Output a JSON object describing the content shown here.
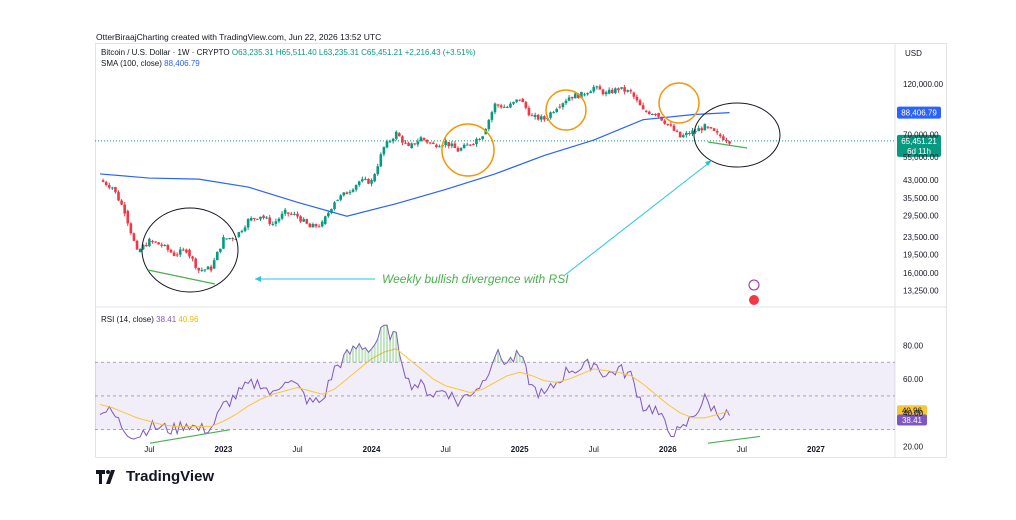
{
  "credit": "OtterBiraajCharting created with TradingView.com, Jun 22, 2026 13:52 UTC",
  "main_legend": {
    "symbol": "Bitcoin / U.S. Dollar · 1W · CRYPTO",
    "ohlc": "O63,235.31  H65,511.40  L63,235.31  C65,451.21  +2,216.43 (+3.51%)",
    "sma_label": "SMA (100, close)",
    "sma_value": "88,406.79"
  },
  "rsi_legend": {
    "label": "RSI (14, close)",
    "rsi_value": "38.41",
    "ma_value": "40.96"
  },
  "annotation": "Weekly bullish divergence with RSI",
  "currency": "USD",
  "badges": {
    "sma": "88,406.79",
    "price": "65,451.21",
    "countdown": "6d 11h",
    "rsi_ma": "40.96",
    "rsi": "38.41"
  },
  "logo_text": "TradingView",
  "colors": {
    "up": "#089981",
    "down": "#f23645",
    "sma": "#2962ff",
    "rsi": "#7e57c2",
    "rsi_ma": "#f7c63b",
    "circle_orange": "#f89500",
    "divergence": "#4caf50",
    "band": "#7e57c2"
  },
  "chart_data": [
    {
      "type": "candlestick",
      "title": "Bitcoin / U.S. Dollar · 1W · CRYPTO",
      "y_scale": "log",
      "ylim": [
        12000,
        150000
      ],
      "y_ticks": [
        120000,
        70000,
        55000,
        43000,
        35500,
        29500,
        23500,
        19500,
        16000,
        13250
      ],
      "x_ticks": [
        "Jul",
        "2023",
        "Jul",
        "2024",
        "Jul",
        "2025",
        "Jul",
        "2026",
        "Jul",
        "2027"
      ],
      "series": [
        {
          "name": "Bitcoin / U.S. Dollar",
          "points": [
            [
              "2022-03",
              43000
            ],
            [
              "2022-04",
              40000
            ],
            [
              "2022-05",
              31000
            ],
            [
              "2022-06",
              20000
            ],
            [
              "2022-07",
              22500
            ],
            [
              "2022-08",
              21500
            ],
            [
              "2022-09",
              19500
            ],
            [
              "2022-10",
              20500
            ],
            [
              "2022-11",
              16500
            ],
            [
              "2022-12",
              16800
            ],
            [
              "2023-01",
              23000
            ],
            [
              "2023-02",
              23500
            ],
            [
              "2023-03",
              28000
            ],
            [
              "2023-04",
              29500
            ],
            [
              "2023-05",
              27000
            ],
            [
              "2023-06",
              30500
            ],
            [
              "2023-07",
              29300
            ],
            [
              "2023-08",
              26000
            ],
            [
              "2023-09",
              27000
            ],
            [
              "2023-10",
              34500
            ],
            [
              "2023-11",
              37700
            ],
            [
              "2023-12",
              42500
            ],
            [
              "2024-01",
              42500
            ],
            [
              "2024-02",
              61000
            ],
            [
              "2024-03",
              71000
            ],
            [
              "2024-04",
              60600
            ],
            [
              "2024-05",
              67500
            ],
            [
              "2024-06",
              62700
            ],
            [
              "2024-07",
              64600
            ],
            [
              "2024-08",
              59000
            ],
            [
              "2024-09",
              63300
            ],
            [
              "2024-10",
              70200
            ],
            [
              "2024-11",
              96400
            ],
            [
              "2024-12",
              93400
            ],
            [
              "2025-01",
              102400
            ],
            [
              "2025-02",
              84400
            ],
            [
              "2025-03",
              82500
            ],
            [
              "2025-04",
              94200
            ],
            [
              "2025-05",
              104600
            ],
            [
              "2025-06",
              107100
            ],
            [
              "2025-07",
              115800
            ],
            [
              "2025-08",
              108200
            ],
            [
              "2025-09",
              114000
            ],
            [
              "2025-10",
              109500
            ],
            [
              "2025-11",
              90000
            ],
            [
              "2025-12",
              88000
            ],
            [
              "2026-01",
              78000
            ],
            [
              "2026-02",
              68000
            ],
            [
              "2026-03",
              72000
            ],
            [
              "2026-04",
              76000
            ],
            [
              "2026-05",
              70000
            ],
            [
              "2026-06",
              65451.21
            ]
          ]
        },
        {
          "name": "SMA (100, close)",
          "points": [
            [
              "2022-03",
              46000
            ],
            [
              "2022-07",
              44000
            ],
            [
              "2022-11",
              43500
            ],
            [
              "2023-03",
              40000
            ],
            [
              "2023-07",
              34000
            ],
            [
              "2023-11",
              29300
            ],
            [
              "2024-03",
              33500
            ],
            [
              "2024-07",
              39000
            ],
            [
              "2024-11",
              46000
            ],
            [
              "2025-03",
              56000
            ],
            [
              "2025-07",
              66000
            ],
            [
              "2025-11",
              82000
            ],
            [
              "2026-03",
              86500
            ],
            [
              "2026-06",
              88406.79
            ]
          ]
        }
      ]
    },
    {
      "type": "line",
      "title": "RSI (14, close)",
      "ylim": [
        15,
        95
      ],
      "y_ticks": [
        80,
        60,
        40,
        20
      ],
      "band": [
        30,
        70
      ],
      "series": [
        {
          "name": "RSI",
          "values": [
            42,
            40,
            30,
            26,
            32,
            31,
            30,
            34,
            30,
            31,
            44,
            50,
            56,
            58,
            50,
            61,
            55,
            46,
            47,
            66,
            74,
            80,
            78,
            90,
            84,
            58,
            56,
            51,
            54,
            46,
            52,
            58,
            75,
            70,
            74,
            55,
            50,
            58,
            66,
            66,
            70,
            62,
            66,
            62,
            44,
            42,
            30,
            28,
            38,
            48,
            40,
            38.41
          ]
        },
        {
          "name": "RSI-based MA",
          "values": [
            45,
            43,
            40,
            37,
            35,
            33,
            32,
            32,
            32,
            32,
            35,
            39,
            44,
            48,
            51,
            53,
            55,
            53,
            51,
            54,
            60,
            66,
            72,
            76,
            78,
            72,
            66,
            60,
            56,
            54,
            52,
            54,
            58,
            62,
            64,
            62,
            59,
            58,
            60,
            63,
            66,
            65,
            64,
            62,
            57,
            51,
            45,
            40,
            37,
            37,
            39,
            40.96
          ]
        }
      ]
    }
  ]
}
